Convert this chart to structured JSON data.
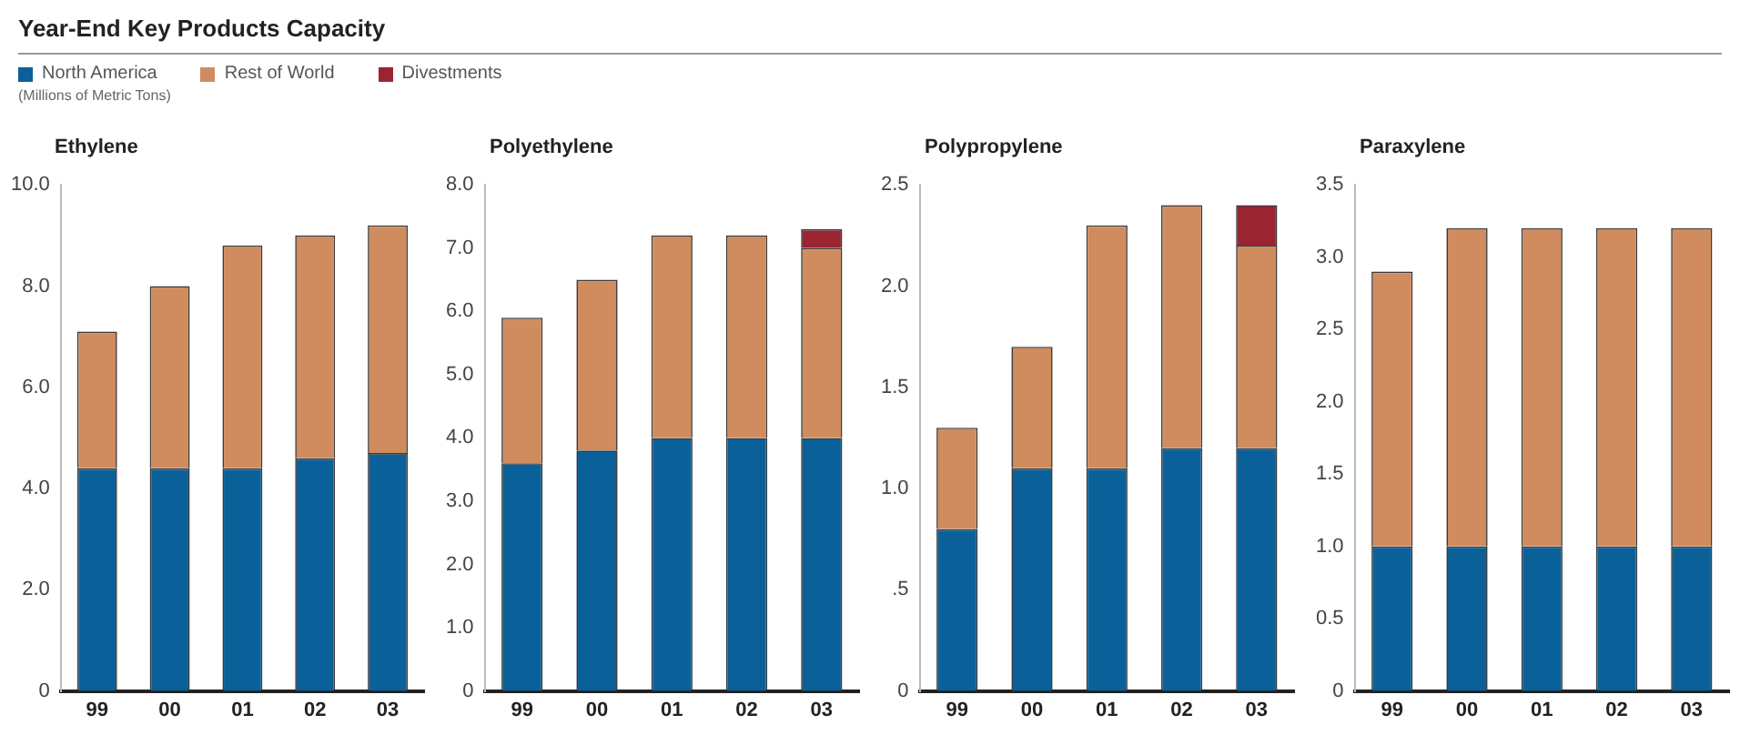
{
  "chart_data": [
    {
      "type": "bar",
      "title": "Ethylene",
      "annotations": [
        "Year-End Key Products Capacity",
        "(Millions of Metric Tons)"
      ],
      "legend": "top",
      "stacked": true,
      "categories": [
        "99",
        "00",
        "01",
        "02",
        "03"
      ],
      "series": [
        {
          "name": "North America",
          "color": "#0a6199",
          "values": [
            4.4,
            4.4,
            4.4,
            4.6,
            4.7
          ]
        },
        {
          "name": "Rest of World",
          "color": "#d08c5e",
          "values": [
            2.7,
            3.6,
            4.4,
            4.4,
            4.5
          ]
        },
        {
          "name": "Divestments",
          "color": "#9b2433",
          "values": [
            null,
            null,
            null,
            null,
            null
          ]
        }
      ],
      "ylim": [
        0,
        10
      ],
      "yticks": [
        0,
        {
          "value": 2,
          "label": "2.0"
        },
        {
          "value": 4,
          "label": "4.0"
        },
        {
          "value": 6,
          "label": "6.0"
        },
        {
          "value": 8,
          "label": "8.0"
        },
        {
          "value": 10,
          "label": "10.0"
        }
      ]
    },
    {
      "type": "bar",
      "title": "Polyethylene",
      "stacked": true,
      "categories": [
        "99",
        "00",
        "01",
        "02",
        "03"
      ],
      "series": [
        {
          "color": "#0a6199",
          "values": [
            3.6,
            3.8,
            4.0,
            4.0,
            4.0
          ]
        },
        {
          "color": "#d08c5e",
          "values": [
            2.3,
            2.7,
            3.2,
            3.2,
            3.0
          ]
        },
        {
          "color": "#9b2433",
          "values": [
            null,
            null,
            null,
            null,
            0.3
          ]
        }
      ],
      "ylim": [
        0,
        8
      ],
      "yticks": [
        0,
        {
          "value": 1,
          "label": "1.0"
        },
        {
          "value": 2,
          "label": "2.0"
        },
        {
          "value": 3,
          "label": "3.0"
        },
        {
          "value": 4,
          "label": "4.0"
        },
        {
          "value": 5,
          "label": "5.0"
        },
        {
          "value": 6,
          "label": "6.0"
        },
        {
          "value": 7,
          "label": "7.0"
        },
        {
          "value": 8,
          "label": "8.0"
        }
      ]
    },
    {
      "type": "bar",
      "title": "Polypropylene",
      "stacked": true,
      "categories": [
        "99",
        "00",
        "01",
        "02",
        "03"
      ],
      "series": [
        {
          "color": "#0a6199",
          "values": [
            0.8,
            1.1,
            1.1,
            1.2,
            1.2
          ]
        },
        {
          "color": "#d08c5e",
          "values": [
            0.5,
            0.6,
            1.2,
            1.2,
            1.0
          ]
        },
        {
          "color": "#9b2433",
          "values": [
            null,
            null,
            null,
            null,
            0.2
          ]
        }
      ],
      "ylim": [
        0,
        2.5
      ],
      "yticks": [
        0,
        {
          "value": 0.5,
          "label": ".5"
        },
        {
          "value": 1,
          "label": "1.0"
        },
        1.5,
        {
          "value": 2,
          "label": "2.0"
        },
        2.5
      ]
    },
    {
      "type": "bar",
      "title": "Paraxylene",
      "stacked": true,
      "categories": [
        "99",
        "00",
        "01",
        "02",
        "03"
      ],
      "series": [
        {
          "color": "#0a6199",
          "values": [
            1.0,
            1.0,
            1.0,
            1.0,
            1.0
          ]
        },
        {
          "color": "#d08c5e",
          "values": [
            1.9,
            2.2,
            2.2,
            2.2,
            2.2
          ]
        }
      ],
      "ylim": [
        0,
        3.5
      ],
      "yticks": [
        0,
        0.5,
        {
          "value": 1,
          "label": "1.0"
        },
        1.5,
        {
          "value": 2,
          "label": "2.0"
        },
        2.5,
        {
          "value": 3,
          "label": "3.0"
        },
        3.5
      ]
    }
  ]
}
